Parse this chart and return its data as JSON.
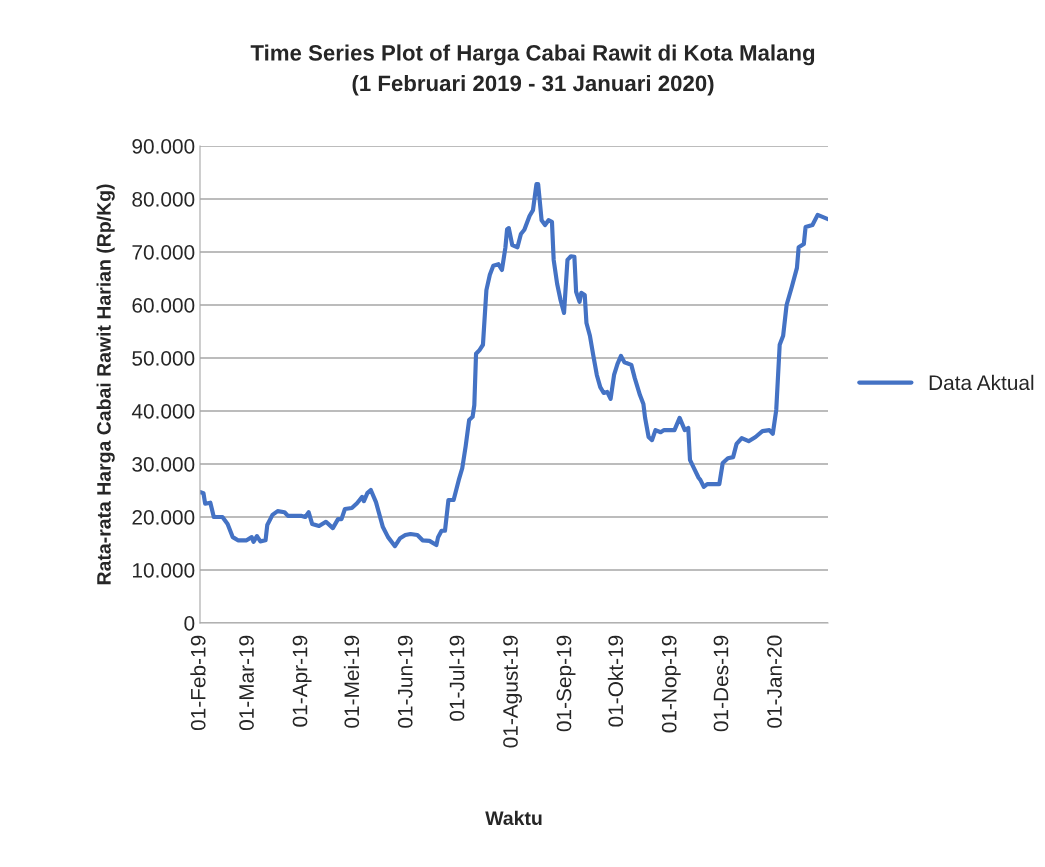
{
  "chart_data": {
    "type": "line",
    "title": "Time Series Plot of Harga Cabai Rawit di Kota Malang\n(1 Februari 2019 - 31 Januari 2020)",
    "xlabel": "Waktu",
    "ylabel": "Rata-rata Harga Cabai Rawit Harian (Rp/Kg)",
    "x": [
      "2019-02-01",
      "2019-02-03",
      "2019-02-04",
      "2019-02-07",
      "2019-02-09",
      "2019-02-14",
      "2019-02-17",
      "2019-02-20",
      "2019-02-23",
      "2019-02-28",
      "2019-03-03",
      "2019-03-04",
      "2019-03-06",
      "2019-03-08",
      "2019-03-11",
      "2019-03-12",
      "2019-03-15",
      "2019-03-18",
      "2019-03-22",
      "2019-03-24",
      "2019-04-01",
      "2019-04-03",
      "2019-04-05",
      "2019-04-07",
      "2019-04-11",
      "2019-04-15",
      "2019-04-19",
      "2019-04-22",
      "2019-04-24",
      "2019-04-26",
      "2019-04-30",
      "2019-05-03",
      "2019-05-06",
      "2019-05-07",
      "2019-05-09",
      "2019-05-11",
      "2019-05-14",
      "2019-05-18",
      "2019-05-21",
      "2019-05-25",
      "2019-05-28",
      "2019-05-31",
      "2019-06-03",
      "2019-06-07",
      "2019-06-10",
      "2019-06-14",
      "2019-06-18",
      "2019-06-19",
      "2019-06-21",
      "2019-06-23",
      "2019-06-25",
      "2019-06-28",
      "2019-07-01",
      "2019-07-03",
      "2019-07-05",
      "2019-07-07",
      "2019-07-09",
      "2019-07-10",
      "2019-07-11",
      "2019-07-13",
      "2019-07-15",
      "2019-07-17",
      "2019-07-19",
      "2019-07-21",
      "2019-07-24",
      "2019-07-26",
      "2019-07-28",
      "2019-07-29",
      "2019-07-30",
      "2019-08-01",
      "2019-08-04",
      "2019-08-06",
      "2019-08-08",
      "2019-08-11",
      "2019-08-13",
      "2019-08-15",
      "2019-08-16",
      "2019-08-18",
      "2019-08-20",
      "2019-08-22",
      "2019-08-24",
      "2019-08-25",
      "2019-08-27",
      "2019-08-29",
      "2019-08-31",
      "2019-09-02",
      "2019-09-04",
      "2019-09-06",
      "2019-09-07",
      "2019-09-09",
      "2019-09-10",
      "2019-09-12",
      "2019-09-13",
      "2019-09-15",
      "2019-09-17",
      "2019-09-19",
      "2019-09-21",
      "2019-09-23",
      "2019-09-25",
      "2019-09-27",
      "2019-09-29",
      "2019-10-01",
      "2019-10-03",
      "2019-10-05",
      "2019-10-09",
      "2019-10-11",
      "2019-10-14",
      "2019-10-16",
      "2019-10-17",
      "2019-10-19",
      "2019-10-21",
      "2019-10-23",
      "2019-10-26",
      "2019-10-28",
      "2019-11-03",
      "2019-11-06",
      "2019-11-09",
      "2019-11-11",
      "2019-11-12",
      "2019-11-14",
      "2019-11-17",
      "2019-11-18",
      "2019-11-20",
      "2019-11-22",
      "2019-11-29",
      "2019-12-01",
      "2019-12-04",
      "2019-12-07",
      "2019-12-09",
      "2019-12-12",
      "2019-12-16",
      "2019-12-20",
      "2019-12-24",
      "2019-12-28",
      "2019-12-30",
      "2020-01-01",
      "2020-01-03",
      "2020-01-05",
      "2020-01-07",
      "2020-01-10",
      "2020-01-13",
      "2020-01-14",
      "2020-01-17",
      "2020-01-18",
      "2020-01-22",
      "2020-01-25",
      "2020-01-31"
    ],
    "series": [
      {
        "name": "Data Aktual",
        "color": "#4472c4",
        "values": [
          24700,
          24500,
          22500,
          22700,
          20000,
          20000,
          18700,
          16200,
          15600,
          15600,
          16200,
          15300,
          16400,
          15400,
          15600,
          18500,
          20400,
          21100,
          20900,
          20200,
          20200,
          20000,
          20900,
          18700,
          18300,
          19100,
          17900,
          19600,
          19600,
          21500,
          21700,
          22600,
          23800,
          23000,
          24500,
          25100,
          22800,
          18100,
          16200,
          14500,
          16000,
          16600,
          16800,
          16600,
          15600,
          15500,
          14700,
          16200,
          17400,
          17400,
          23200,
          23200,
          27000,
          29200,
          33400,
          38300,
          38900,
          41100,
          50800,
          51500,
          52500,
          62800,
          65700,
          67400,
          67700,
          66600,
          70800,
          74300,
          74500,
          71300,
          70900,
          73400,
          74200,
          76800,
          77900,
          82800,
          82800,
          76000,
          75100,
          76000,
          75700,
          68500,
          64000,
          60900,
          58500,
          68500,
          69200,
          69100,
          62500,
          60600,
          62300,
          61900,
          56600,
          54200,
          50400,
          46800,
          44500,
          43400,
          43600,
          42300,
          46800,
          48900,
          50400,
          49200,
          48700,
          46200,
          43000,
          41300,
          38700,
          35100,
          34500,
          36400,
          36000,
          36400,
          36400,
          38700,
          36400,
          36800,
          30800,
          29400,
          27400,
          27000,
          25700,
          26200,
          26200,
          30200,
          31100,
          31300,
          33800,
          34900,
          34300,
          35100,
          36200,
          36400,
          35700,
          40200,
          52500,
          54200,
          60000,
          63400,
          67000,
          70900,
          71500,
          74700,
          75100,
          77000,
          76200
        ]
      }
    ],
    "xlim": [
      "2019-02-01",
      "2020-01-31"
    ],
    "xticks": [
      {
        "value": "2019-02-01",
        "label": "01-Feb-19"
      },
      {
        "value": "2019-03-01",
        "label": "01-Mar-19"
      },
      {
        "value": "2019-04-01",
        "label": "01-Apr-19"
      },
      {
        "value": "2019-05-01",
        "label": "01-Mei-19"
      },
      {
        "value": "2019-06-01",
        "label": "01-Jun-19"
      },
      {
        "value": "2019-07-01",
        "label": "01-Jul-19"
      },
      {
        "value": "2019-08-01",
        "label": "01-Agust-19"
      },
      {
        "value": "2019-09-01",
        "label": "01-Sep-19"
      },
      {
        "value": "2019-10-01",
        "label": "01-Okt-19"
      },
      {
        "value": "2019-11-01",
        "label": "01-Nop-19"
      },
      {
        "value": "2019-12-01",
        "label": "01-Des-19"
      },
      {
        "value": "2020-01-01",
        "label": "01-Jan-20"
      }
    ],
    "ylim": [
      0,
      90000
    ],
    "yticks": [
      0,
      {
        "value": 10000,
        "label": "10.000"
      },
      {
        "value": 20000,
        "label": "20.000"
      },
      {
        "value": 30000,
        "label": "30.000"
      },
      {
        "value": 40000,
        "label": "40.000"
      },
      {
        "value": 50000,
        "label": "50.000"
      },
      {
        "value": 60000,
        "label": "60.000"
      },
      {
        "value": 70000,
        "label": "70.000"
      },
      {
        "value": 80000,
        "label": "80.000"
      },
      {
        "value": 90000,
        "label": "90.000"
      }
    ],
    "grid": "y",
    "legend": "right",
    "marker": "none",
    "line_style": "solid"
  }
}
